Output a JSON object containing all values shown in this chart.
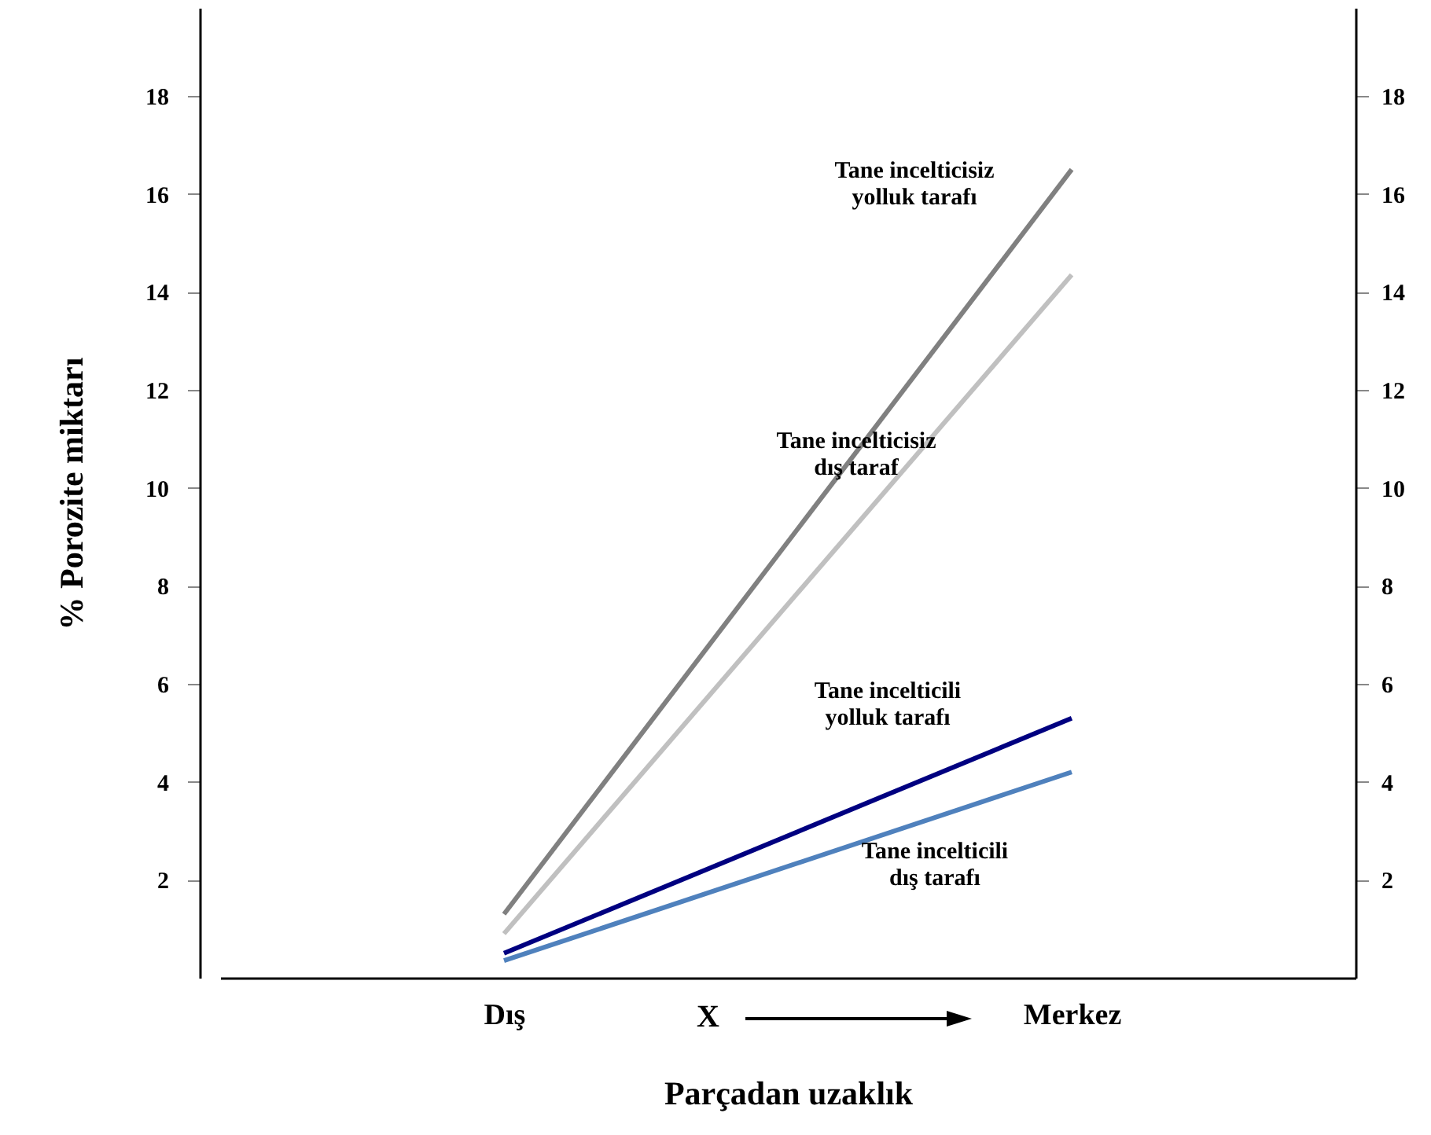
{
  "chart_data": {
    "type": "line",
    "xlabel": "Parçadan uzaklık",
    "ylabel": "% Porozite miktarı",
    "categories": [
      "Dış",
      "Merkez"
    ],
    "ylim": [
      0,
      19.8
    ],
    "yticks": [
      2,
      4,
      6,
      8,
      10,
      12,
      14,
      16,
      18
    ],
    "y2lim": [
      0,
      19.8
    ],
    "y2ticks": [
      2,
      4,
      6,
      8,
      10,
      12,
      14,
      16,
      18
    ],
    "series": [
      {
        "name": "Tane incelticisiz\nyolluk tarafı",
        "color": "#808080",
        "values": [
          1.3,
          16.5
        ]
      },
      {
        "name": "Tane incelticisiz\ndış taraf",
        "color": "#c0c0c0",
        "values": [
          0.9,
          14.35
        ]
      },
      {
        "name": "Tane incelticili\nyolluk tarafı",
        "color": "#000080",
        "values": [
          0.5,
          5.3
        ]
      },
      {
        "name": "Tane incelticili\ndış tarafı",
        "color": "#4f81bd",
        "values": [
          0.35,
          4.2
        ]
      }
    ],
    "annotations": [
      "X"
    ],
    "grid": false,
    "line_style": "solid",
    "marker": "none"
  }
}
